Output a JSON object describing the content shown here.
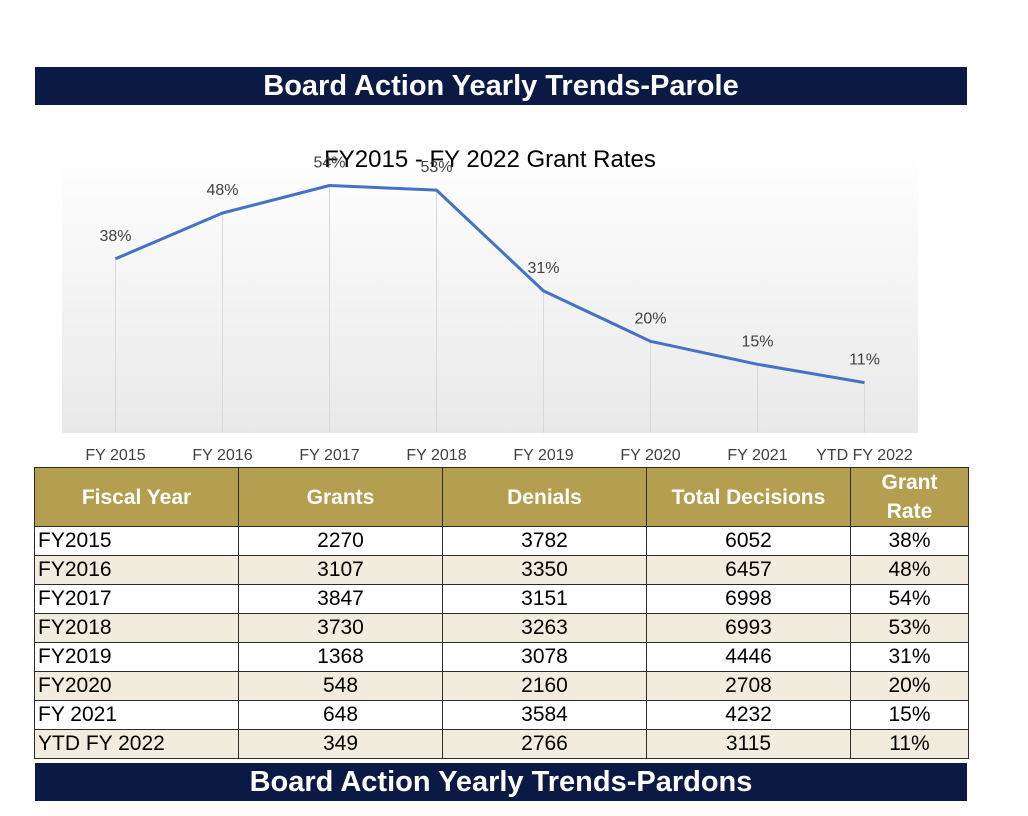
{
  "header_title": "Board Action Yearly Trends-Parole",
  "footer_title": "Board Action Yearly Trends-Pardons",
  "colors": {
    "banner": "#0b1a45",
    "table_header": "#b49e50",
    "line": "#4472c4",
    "row_alt": "#f2ecde"
  },
  "chart_data": {
    "type": "line",
    "title": "FY2015 - FY 2022 Grant Rates",
    "categories": [
      "FY 2015",
      "FY 2016",
      "FY 2017",
      "FY 2018",
      "FY 2019",
      "FY 2020",
      "FY 2021",
      "YTD FY 2022"
    ],
    "series": [
      {
        "values": [
          38,
          48,
          54,
          53,
          31,
          20,
          15,
          11
        ],
        "labels": [
          "38%",
          "48%",
          "54%",
          "53%",
          "31%",
          "20%",
          "15%",
          "11%"
        ]
      }
    ],
    "xlabel": "",
    "ylabel": "",
    "ylim": [
      0,
      60
    ],
    "grid": "vertical drop lines",
    "legend": "none"
  },
  "table": {
    "headers": [
      "Fiscal Year",
      "Grants",
      "Denials",
      "Total Decisions",
      "Grant Rate"
    ],
    "rows": [
      [
        "FY2015",
        "2270",
        "3782",
        "6052",
        "38%"
      ],
      [
        "FY2016",
        "3107",
        "3350",
        "6457",
        "48%"
      ],
      [
        "FY2017",
        "3847",
        "3151",
        "6998",
        "54%"
      ],
      [
        "FY2018",
        "3730",
        "3263",
        "6993",
        "53%"
      ],
      [
        "FY2019",
        "1368",
        "3078",
        "4446",
        "31%"
      ],
      [
        "FY2020",
        "548",
        "2160",
        "2708",
        "20%"
      ],
      [
        "FY 2021",
        "648",
        "3584",
        "4232",
        "15%"
      ],
      [
        "YTD FY 2022",
        "349",
        "2766",
        "3115",
        "11%"
      ]
    ]
  }
}
